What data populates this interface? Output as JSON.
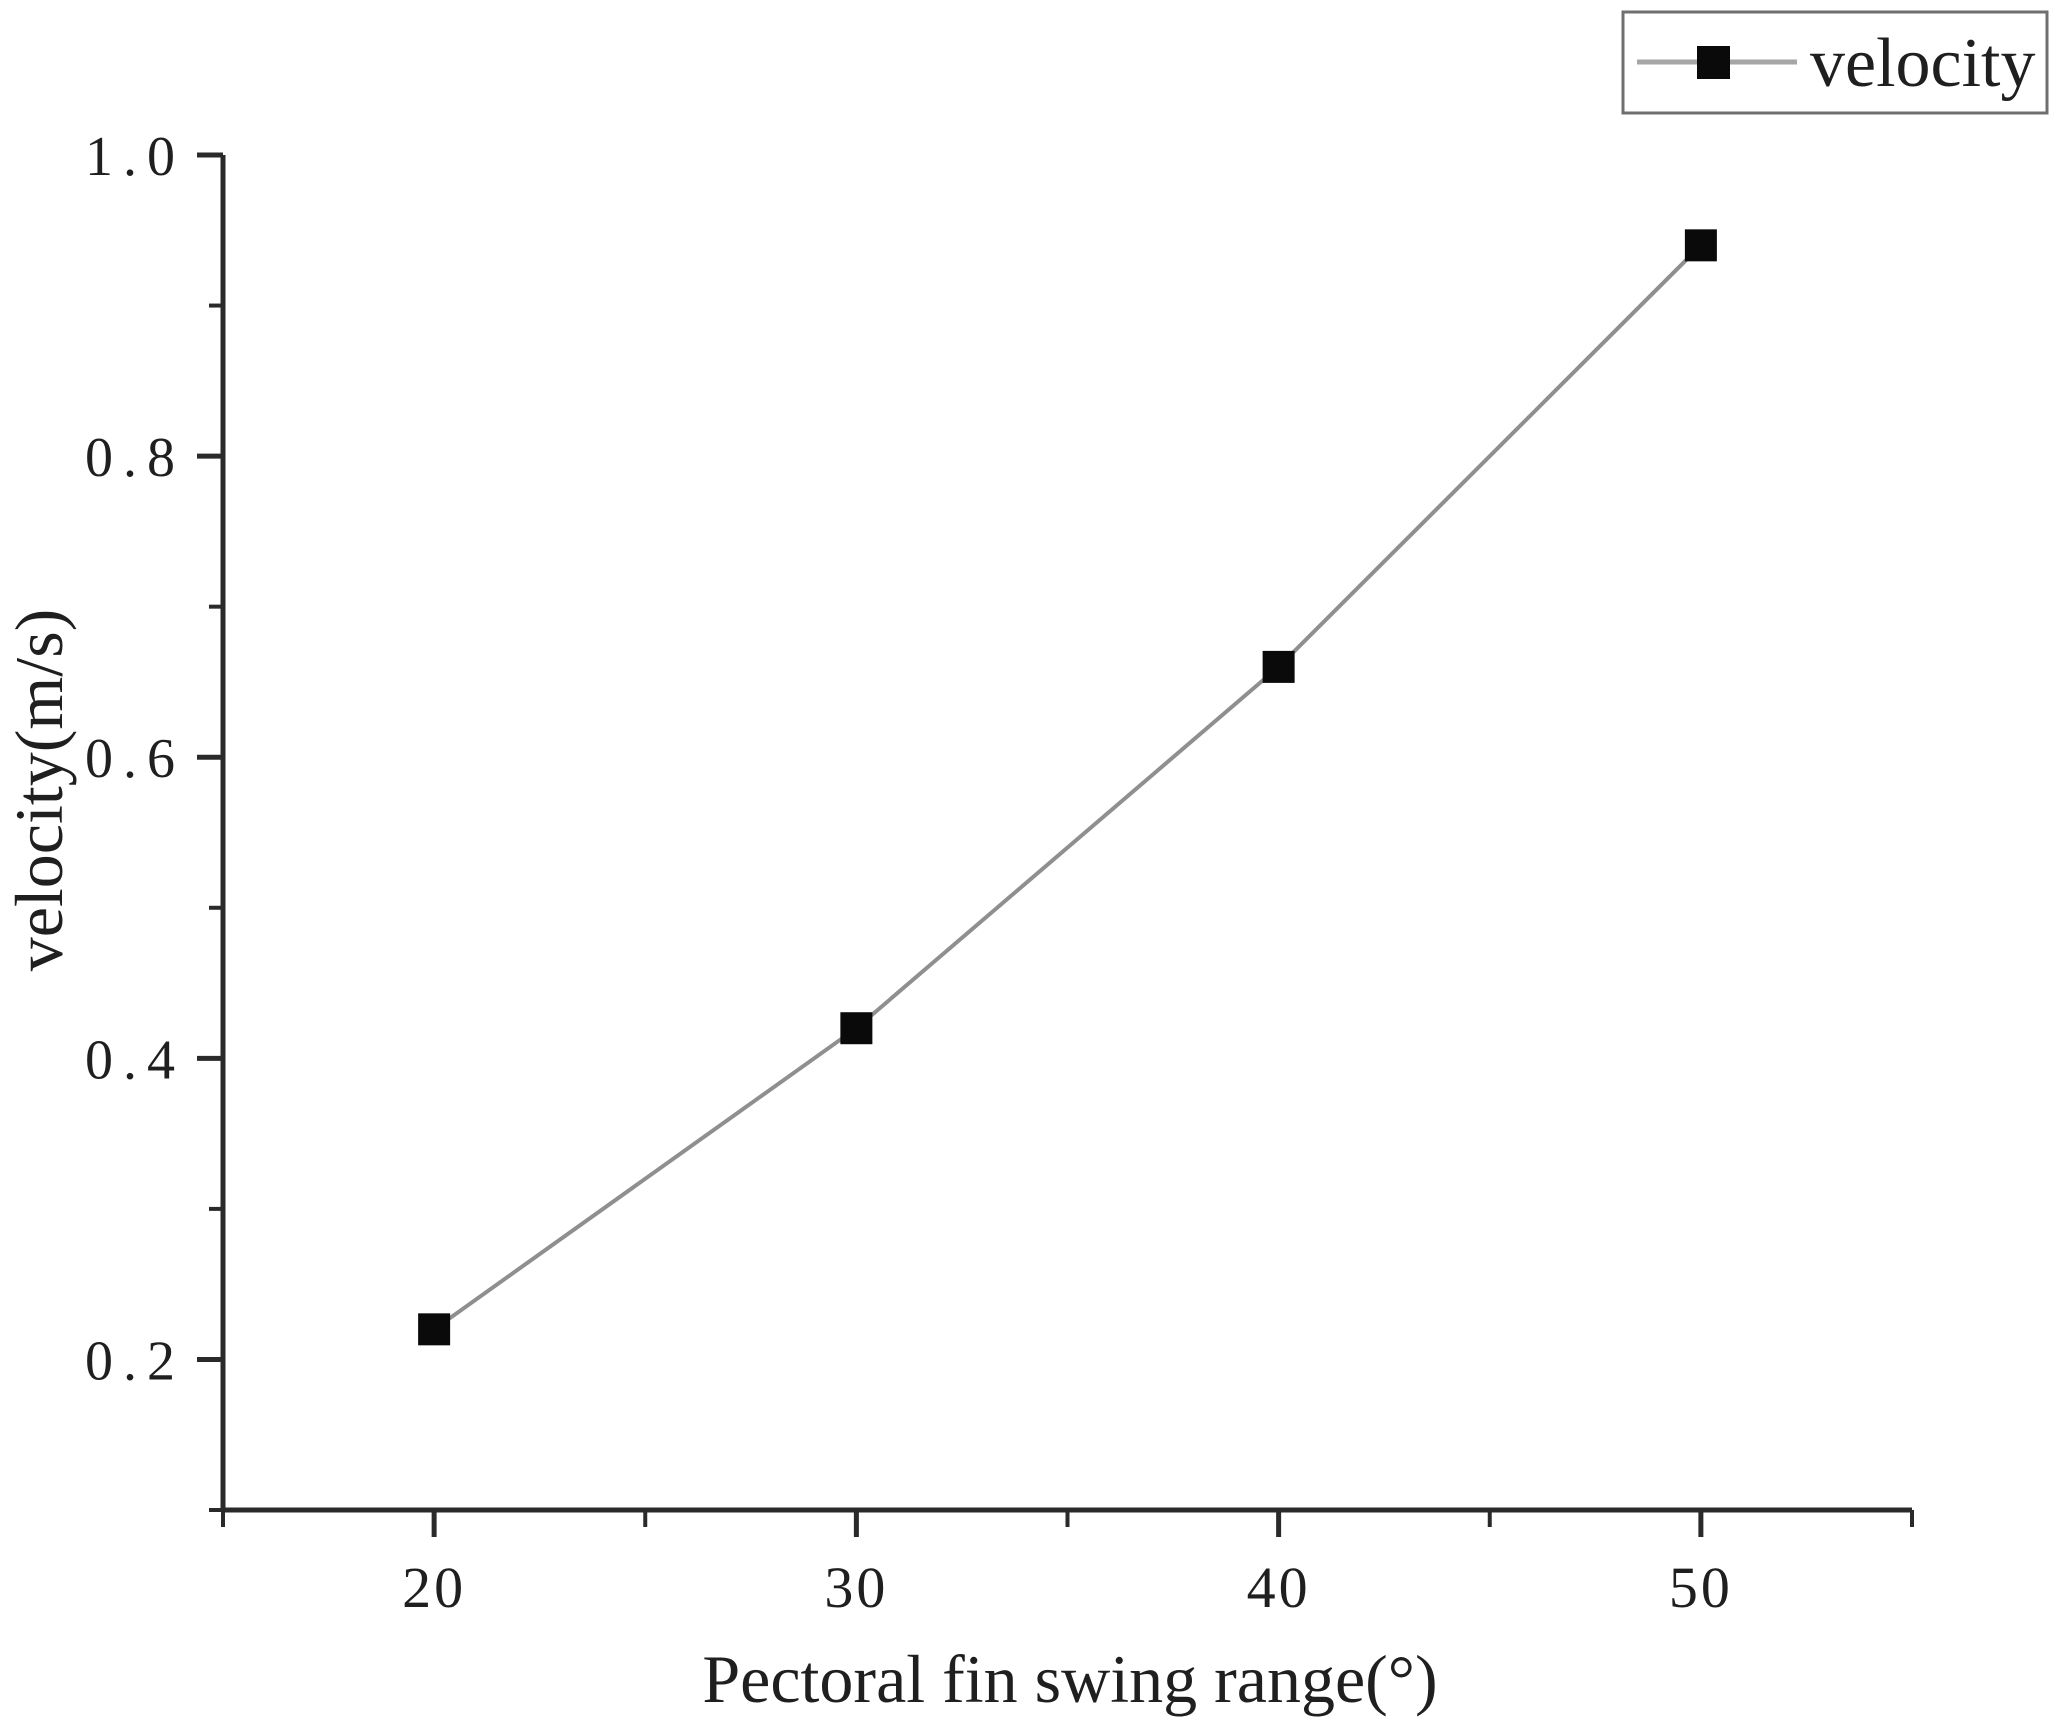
{
  "figure": {
    "background": "#ffffff"
  },
  "chart_data": {
    "type": "line",
    "title": "",
    "xlabel": "Pectoral fin swing range(°)",
    "ylabel": "velocity(m/s)",
    "xlim": [
      15,
      55
    ],
    "ylim": [
      0.1,
      1.0
    ],
    "grid": false,
    "categories": [
      20,
      30,
      40,
      50
    ],
    "series": [
      {
        "name": "velocity",
        "x": [
          20,
          30,
          40,
          50
        ],
        "y": [
          0.22,
          0.42,
          0.66,
          0.94
        ],
        "marker": "square",
        "marker_size": 32,
        "line_style": "solid"
      }
    ],
    "xticks": {
      "major": [
        20,
        30,
        40,
        50
      ],
      "labels": [
        "20",
        "30",
        "40",
        "50"
      ],
      "minor": [
        15,
        25,
        35,
        45,
        55
      ]
    },
    "yticks": {
      "major": [
        0.2,
        0.4,
        0.6,
        0.8,
        1.0
      ],
      "labels": [
        "0.2",
        "0.4",
        "0.6",
        "0.8",
        "1.0"
      ],
      "minor": [
        0.1,
        0.3,
        0.5,
        0.7,
        0.9
      ]
    },
    "legend": {
      "label": "velocity",
      "position": "top-right"
    },
    "colors": {
      "background": "#ffffff",
      "axis": "#2a2a2a",
      "text": "#1f1f1f",
      "series_line": "#8f8f8f",
      "marker": "#0a0a0a",
      "legend_border": "#6f6f6f",
      "legend_line": "#a6a6a6"
    }
  }
}
